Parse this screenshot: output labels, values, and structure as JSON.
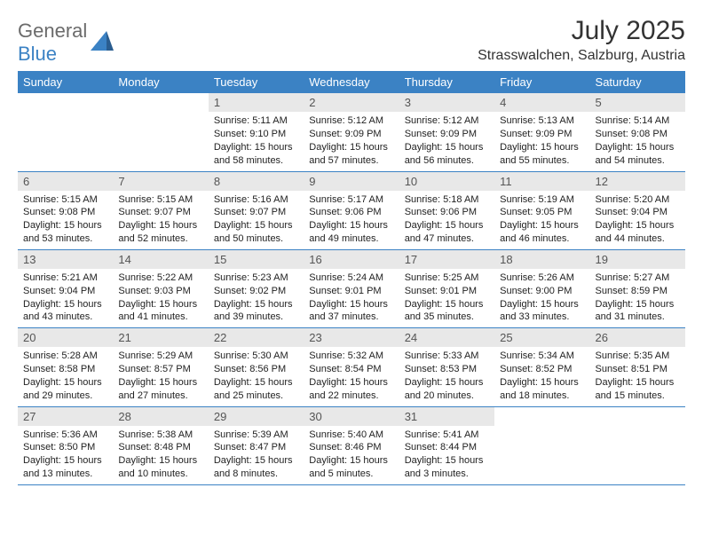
{
  "logo": {
    "word1": "General",
    "word2": "Blue"
  },
  "title": "July 2025",
  "subtitle": "Strasswalchen, Salzburg, Austria",
  "colors": {
    "header_bg": "#3b82c4",
    "header_text": "#ffffff",
    "daynum_bg": "#e8e8e8",
    "border": "#3b82c4",
    "logo_gray": "#6b6b6b",
    "logo_blue": "#3b82c4"
  },
  "columns": [
    "Sunday",
    "Monday",
    "Tuesday",
    "Wednesday",
    "Thursday",
    "Friday",
    "Saturday"
  ],
  "weeks": [
    [
      null,
      null,
      {
        "n": "1",
        "sunrise": "5:11 AM",
        "sunset": "9:10 PM",
        "daylight": "15 hours and 58 minutes."
      },
      {
        "n": "2",
        "sunrise": "5:12 AM",
        "sunset": "9:09 PM",
        "daylight": "15 hours and 57 minutes."
      },
      {
        "n": "3",
        "sunrise": "5:12 AM",
        "sunset": "9:09 PM",
        "daylight": "15 hours and 56 minutes."
      },
      {
        "n": "4",
        "sunrise": "5:13 AM",
        "sunset": "9:09 PM",
        "daylight": "15 hours and 55 minutes."
      },
      {
        "n": "5",
        "sunrise": "5:14 AM",
        "sunset": "9:08 PM",
        "daylight": "15 hours and 54 minutes."
      }
    ],
    [
      {
        "n": "6",
        "sunrise": "5:15 AM",
        "sunset": "9:08 PM",
        "daylight": "15 hours and 53 minutes."
      },
      {
        "n": "7",
        "sunrise": "5:15 AM",
        "sunset": "9:07 PM",
        "daylight": "15 hours and 52 minutes."
      },
      {
        "n": "8",
        "sunrise": "5:16 AM",
        "sunset": "9:07 PM",
        "daylight": "15 hours and 50 minutes."
      },
      {
        "n": "9",
        "sunrise": "5:17 AM",
        "sunset": "9:06 PM",
        "daylight": "15 hours and 49 minutes."
      },
      {
        "n": "10",
        "sunrise": "5:18 AM",
        "sunset": "9:06 PM",
        "daylight": "15 hours and 47 minutes."
      },
      {
        "n": "11",
        "sunrise": "5:19 AM",
        "sunset": "9:05 PM",
        "daylight": "15 hours and 46 minutes."
      },
      {
        "n": "12",
        "sunrise": "5:20 AM",
        "sunset": "9:04 PM",
        "daylight": "15 hours and 44 minutes."
      }
    ],
    [
      {
        "n": "13",
        "sunrise": "5:21 AM",
        "sunset": "9:04 PM",
        "daylight": "15 hours and 43 minutes."
      },
      {
        "n": "14",
        "sunrise": "5:22 AM",
        "sunset": "9:03 PM",
        "daylight": "15 hours and 41 minutes."
      },
      {
        "n": "15",
        "sunrise": "5:23 AM",
        "sunset": "9:02 PM",
        "daylight": "15 hours and 39 minutes."
      },
      {
        "n": "16",
        "sunrise": "5:24 AM",
        "sunset": "9:01 PM",
        "daylight": "15 hours and 37 minutes."
      },
      {
        "n": "17",
        "sunrise": "5:25 AM",
        "sunset": "9:01 PM",
        "daylight": "15 hours and 35 minutes."
      },
      {
        "n": "18",
        "sunrise": "5:26 AM",
        "sunset": "9:00 PM",
        "daylight": "15 hours and 33 minutes."
      },
      {
        "n": "19",
        "sunrise": "5:27 AM",
        "sunset": "8:59 PM",
        "daylight": "15 hours and 31 minutes."
      }
    ],
    [
      {
        "n": "20",
        "sunrise": "5:28 AM",
        "sunset": "8:58 PM",
        "daylight": "15 hours and 29 minutes."
      },
      {
        "n": "21",
        "sunrise": "5:29 AM",
        "sunset": "8:57 PM",
        "daylight": "15 hours and 27 minutes."
      },
      {
        "n": "22",
        "sunrise": "5:30 AM",
        "sunset": "8:56 PM",
        "daylight": "15 hours and 25 minutes."
      },
      {
        "n": "23",
        "sunrise": "5:32 AM",
        "sunset": "8:54 PM",
        "daylight": "15 hours and 22 minutes."
      },
      {
        "n": "24",
        "sunrise": "5:33 AM",
        "sunset": "8:53 PM",
        "daylight": "15 hours and 20 minutes."
      },
      {
        "n": "25",
        "sunrise": "5:34 AM",
        "sunset": "8:52 PM",
        "daylight": "15 hours and 18 minutes."
      },
      {
        "n": "26",
        "sunrise": "5:35 AM",
        "sunset": "8:51 PM",
        "daylight": "15 hours and 15 minutes."
      }
    ],
    [
      {
        "n": "27",
        "sunrise": "5:36 AM",
        "sunset": "8:50 PM",
        "daylight": "15 hours and 13 minutes."
      },
      {
        "n": "28",
        "sunrise": "5:38 AM",
        "sunset": "8:48 PM",
        "daylight": "15 hours and 10 minutes."
      },
      {
        "n": "29",
        "sunrise": "5:39 AM",
        "sunset": "8:47 PM",
        "daylight": "15 hours and 8 minutes."
      },
      {
        "n": "30",
        "sunrise": "5:40 AM",
        "sunset": "8:46 PM",
        "daylight": "15 hours and 5 minutes."
      },
      {
        "n": "31",
        "sunrise": "5:41 AM",
        "sunset": "8:44 PM",
        "daylight": "15 hours and 3 minutes."
      },
      null,
      null
    ]
  ],
  "labels": {
    "sunrise": "Sunrise: ",
    "sunset": "Sunset: ",
    "daylight": "Daylight: "
  }
}
